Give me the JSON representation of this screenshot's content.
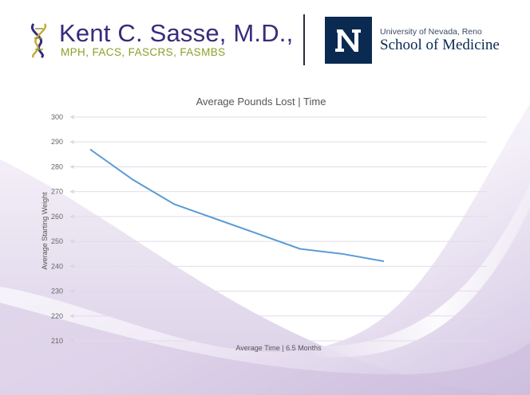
{
  "header": {
    "name": "Kent C. Sasse, M.D.,",
    "credentials": "MPH, FACS, FASCRS, FASMBS",
    "university": "University of Nevada, Reno",
    "school": "School of Medicine",
    "brand_purple": "#3b2a7a",
    "brand_green": "#8aa12a",
    "unr_navy": "#0a2a52"
  },
  "chart_data": {
    "type": "line",
    "title": "Average Pounds Lost | Time",
    "xlabel": "Average Time | 6.5 Months",
    "ylabel": "Average Starting Weight",
    "ylim": [
      210,
      300
    ],
    "yticks": [
      "300",
      "290",
      "280",
      "270",
      "260",
      "250",
      "240",
      "230",
      "220",
      "210"
    ],
    "x": [
      1,
      2,
      3,
      4,
      5,
      6,
      7,
      8
    ],
    "series": [
      {
        "values": [
          287,
          275,
          265,
          259,
          253,
          247,
          245,
          242
        ],
        "color": "#5b9bd5"
      }
    ],
    "grid": true,
    "legend": "none"
  }
}
